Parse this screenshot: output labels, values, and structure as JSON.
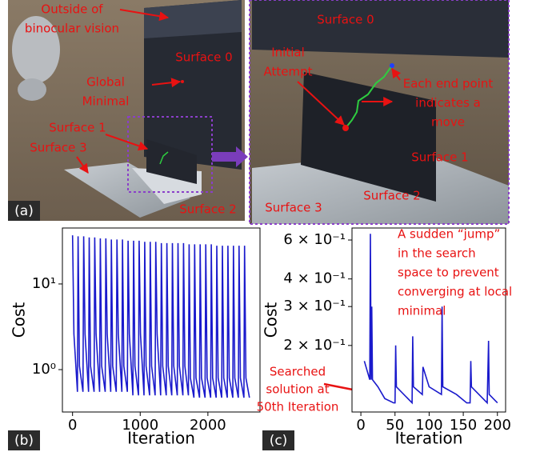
{
  "panel_a": {
    "tag": "(a)",
    "left_labels": [
      [
        "Outside of",
        "binocular vision"
      ],
      [
        "Surface 0"
      ],
      [
        "Global",
        "Minimal"
      ],
      [
        "Surface 1"
      ],
      [
        "Surface 3"
      ],
      [
        "Surface 2"
      ]
    ],
    "right_labels": [
      [
        "Surface 0"
      ],
      [
        "Initial",
        "Attempt"
      ],
      [
        "Each end point",
        "indicates a",
        "move"
      ],
      [
        "Surface 1"
      ],
      [
        "Surface 2"
      ],
      [
        "Surface 3"
      ]
    ]
  },
  "chart_data": [
    {
      "type": "line",
      "tag": "(b)",
      "ylabel": "Cost",
      "xlabel": "Iteration",
      "log_y": true,
      "color": "#1a1acc",
      "xlim": [
        -150,
        2770
      ],
      "xticks": [
        0,
        1000,
        2000
      ],
      "ylim": [
        0.32,
        45
      ],
      "yticks": [
        {
          "value": 1,
          "label": "10⁰"
        },
        {
          "value": 10,
          "label": "10¹"
        }
      ],
      "x": [
        0,
        20,
        72,
        82,
        102,
        154,
        164,
        184,
        236,
        246,
        266,
        318,
        328,
        348,
        400,
        410,
        430,
        482,
        492,
        512,
        564,
        574,
        594,
        646,
        656,
        676,
        728,
        738,
        758,
        810,
        820,
        840,
        892,
        902,
        922,
        974,
        984,
        1004,
        1056,
        1066,
        1086,
        1138,
        1148,
        1168,
        1220,
        1230,
        1250,
        1302,
        1312,
        1332,
        1384,
        1394,
        1414,
        1466,
        1476,
        1496,
        1548,
        1558,
        1578,
        1630,
        1640,
        1660,
        1712,
        1722,
        1742,
        1794,
        1804,
        1824,
        1876,
        1886,
        1906,
        1958,
        1968,
        1988,
        2040,
        2050,
        2070,
        2122,
        2132,
        2152,
        2204,
        2214,
        2234,
        2286,
        2296,
        2316,
        2368,
        2378,
        2398,
        2450,
        2460,
        2480,
        2532,
        2542,
        2562,
        2614
      ],
      "values": [
        37,
        2.6,
        0.55,
        36,
        1.1,
        0.55,
        36,
        2.6,
        0.55,
        35,
        1.1,
        0.55,
        35,
        2.6,
        0.55,
        34,
        1.1,
        0.55,
        34,
        2.6,
        0.55,
        33,
        1.1,
        0.55,
        33,
        2.6,
        0.55,
        33,
        1.1,
        0.55,
        32,
        2.6,
        0.5,
        32,
        1.1,
        0.5,
        32,
        2.6,
        0.5,
        31,
        1.1,
        0.5,
        31,
        1.1,
        0.5,
        31,
        2.6,
        0.5,
        30,
        1.1,
        0.5,
        30,
        1.1,
        0.5,
        30,
        1.1,
        0.5,
        30,
        1.1,
        0.5,
        30,
        1.1,
        0.5,
        29,
        0.8,
        0.47,
        29,
        0.8,
        0.47,
        29,
        0.8,
        0.47,
        29,
        0.8,
        0.47,
        29,
        0.8,
        0.47,
        28,
        0.8,
        0.47,
        28,
        0.8,
        0.47,
        28,
        0.8,
        0.47,
        28,
        0.8,
        0.47,
        28,
        0.8,
        0.47,
        28,
        0.8,
        0.47
      ]
    },
    {
      "type": "line",
      "tag": "(c)",
      "ylabel": "Cost",
      "xlabel": "Iteration",
      "log_y": true,
      "color": "#1a1acc",
      "xlim": [
        -13,
        212
      ],
      "xticks": [
        0,
        50,
        100,
        150,
        200
      ],
      "ylim": [
        0.1,
        0.68
      ],
      "yticks": [
        {
          "value": 0.2,
          "label": "2 × 10⁻¹"
        },
        {
          "value": 0.3,
          "label": "3 × 10⁻¹"
        },
        {
          "value": 0.4,
          "label": "4 × 10⁻¹"
        },
        {
          "value": 0.6,
          "label": "6 × 10⁻¹"
        }
      ],
      "x": [
        5,
        13,
        14,
        15,
        16,
        17,
        25,
        35,
        48,
        50,
        51,
        52,
        75,
        76,
        77,
        90,
        91,
        100,
        118,
        119,
        120,
        140,
        155,
        160,
        161,
        162,
        185,
        187,
        188,
        200
      ],
      "values": [
        0.17,
        0.14,
        0.64,
        0.14,
        0.3,
        0.14,
        0.13,
        0.115,
        0.11,
        0.11,
        0.2,
        0.13,
        0.11,
        0.22,
        0.13,
        0.12,
        0.16,
        0.13,
        0.12,
        0.3,
        0.13,
        0.12,
        0.11,
        0.11,
        0.17,
        0.13,
        0.11,
        0.21,
        0.12,
        0.11
      ],
      "annotations": [
        [
          "A sudden “jump”",
          "in the search",
          "space to prevent",
          "converging at local",
          "minimal"
        ],
        [
          "Searched",
          "solution at",
          "50th Iteration"
        ]
      ]
    }
  ]
}
